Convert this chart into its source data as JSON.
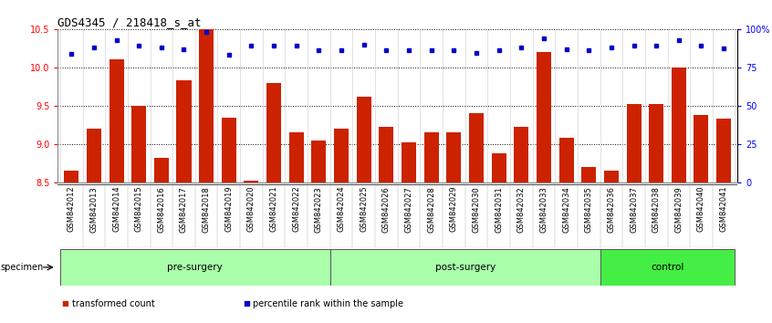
{
  "title": "GDS4345 / 218418_s_at",
  "categories": [
    "GSM842012",
    "GSM842013",
    "GSM842014",
    "GSM842015",
    "GSM842016",
    "GSM842017",
    "GSM842018",
    "GSM842019",
    "GSM842020",
    "GSM842021",
    "GSM842022",
    "GSM842023",
    "GSM842024",
    "GSM842025",
    "GSM842026",
    "GSM842027",
    "GSM842028",
    "GSM842029",
    "GSM842030",
    "GSM842031",
    "GSM842032",
    "GSM842033",
    "GSM842034",
    "GSM842035",
    "GSM842036",
    "GSM842037",
    "GSM842038",
    "GSM842039",
    "GSM842040",
    "GSM842041"
  ],
  "bar_values": [
    8.65,
    9.2,
    10.1,
    9.5,
    8.82,
    9.83,
    10.5,
    9.35,
    8.52,
    9.8,
    9.15,
    9.05,
    9.2,
    9.62,
    9.22,
    9.02,
    9.15,
    9.15,
    9.4,
    8.88,
    9.22,
    10.2,
    9.08,
    8.7,
    8.65,
    9.52,
    9.52,
    10.0,
    9.38,
    9.33
  ],
  "percentile_values": [
    10.18,
    10.26,
    10.36,
    10.28,
    10.26,
    10.24,
    10.46,
    10.16,
    10.28,
    10.28,
    10.28,
    10.23,
    10.22,
    10.3,
    10.23,
    10.23,
    10.23,
    10.22,
    10.19,
    10.23,
    10.26,
    10.38,
    10.24,
    10.23,
    10.26,
    10.29,
    10.29,
    10.36,
    10.28,
    10.25
  ],
  "group_labels": [
    "pre-surgery",
    "post-surgery",
    "control"
  ],
  "group_ranges": [
    [
      0,
      12
    ],
    [
      12,
      24
    ],
    [
      24,
      30
    ]
  ],
  "group_colors": [
    "#aaffaa",
    "#aaffaa",
    "#44ee44"
  ],
  "ylim_left": [
    8.5,
    10.5
  ],
  "ylim_right": [
    0,
    100
  ],
  "yticks_left": [
    8.5,
    9.0,
    9.5,
    10.0,
    10.5
  ],
  "yticks_right": [
    0,
    25,
    50,
    75,
    100
  ],
  "bar_color": "#cc2200",
  "dot_color": "#0000cc",
  "title_fontsize": 9,
  "tick_fontsize": 7,
  "legend_items": [
    "transformed count",
    "percentile rank within the sample"
  ],
  "specimen_label": "specimen",
  "xticklabel_bg": "#cccccc"
}
